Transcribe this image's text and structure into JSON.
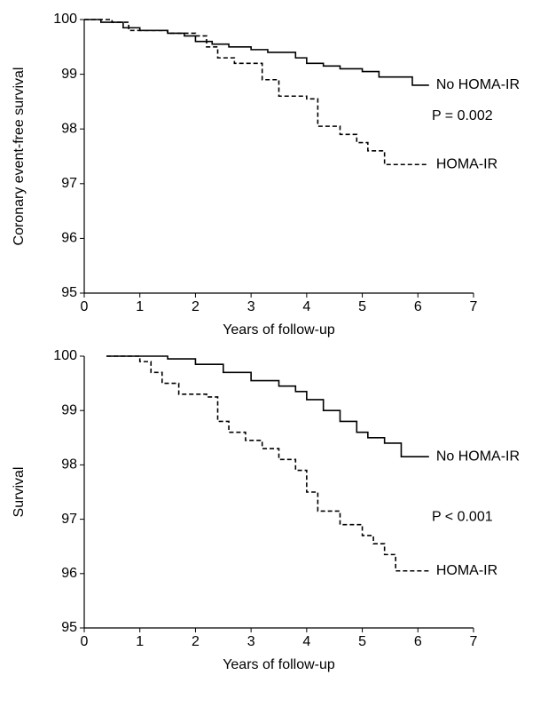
{
  "chart_data": [
    {
      "type": "line",
      "drawstyle": "steps-post",
      "ylabel": "Coronary event-free survival",
      "xlabel": "Years of follow-up",
      "xlim": [
        0,
        7
      ],
      "ylim": [
        95,
        100
      ],
      "xticks": [
        0,
        1,
        2,
        3,
        4,
        5,
        6,
        7
      ],
      "yticks": [
        95,
        96,
        97,
        98,
        99,
        100
      ],
      "annotation": "P = 0.002",
      "series": [
        {
          "name": "No HOMA-IR",
          "color": "#000000",
          "linestyle": "solid",
          "x": [
            0,
            0.3,
            0.7,
            1,
            1.5,
            1.8,
            2,
            2.3,
            2.6,
            3,
            3.3,
            3.8,
            4,
            4.3,
            4.6,
            5,
            5.3,
            5.9,
            6.2
          ],
          "values": [
            100,
            99.95,
            99.85,
            99.8,
            99.75,
            99.7,
            99.6,
            99.55,
            99.5,
            99.45,
            99.4,
            99.3,
            99.2,
            99.15,
            99.1,
            99.05,
            98.95,
            98.8,
            98.8
          ]
        },
        {
          "name": "HOMA-IR",
          "color": "#000000",
          "linestyle": "dashed",
          "x": [
            0,
            0.5,
            0.8,
            1.5,
            2,
            2.2,
            2.4,
            2.7,
            3.2,
            3.5,
            4,
            4.2,
            4.6,
            4.9,
            5.1,
            5.4,
            6.2
          ],
          "values": [
            100,
            99.95,
            99.8,
            99.75,
            99.7,
            99.5,
            99.3,
            99.2,
            98.9,
            98.6,
            98.55,
            98.05,
            97.9,
            97.75,
            97.6,
            97.35,
            97.35
          ]
        }
      ]
    },
    {
      "type": "line",
      "drawstyle": "steps-post",
      "ylabel": "Survival",
      "xlabel": "Years of follow-up",
      "xlim": [
        0,
        7
      ],
      "ylim": [
        95,
        100
      ],
      "xticks": [
        0,
        1,
        2,
        3,
        4,
        5,
        6,
        7
      ],
      "yticks": [
        95,
        96,
        97,
        98,
        99,
        100
      ],
      "annotation": "P < 0.001",
      "series": [
        {
          "name": "No HOMA-IR",
          "color": "#000000",
          "linestyle": "solid",
          "x": [
            0.4,
            1,
            1.5,
            2,
            2.5,
            3,
            3.5,
            3.8,
            4,
            4.3,
            4.6,
            4.9,
            5.1,
            5.4,
            5.7,
            6.2
          ],
          "values": [
            100,
            100,
            99.95,
            99.85,
            99.7,
            99.55,
            99.45,
            99.35,
            99.2,
            99.0,
            98.8,
            98.6,
            98.5,
            98.4,
            98.15,
            98.15
          ]
        },
        {
          "name": "HOMA-IR",
          "color": "#000000",
          "linestyle": "dashed",
          "x": [
            0.4,
            1,
            1.2,
            1.4,
            1.7,
            2.2,
            2.4,
            2.6,
            2.9,
            3.2,
            3.5,
            3.8,
            4,
            4.2,
            4.6,
            5,
            5.2,
            5.4,
            5.6,
            6.2
          ],
          "values": [
            100,
            99.9,
            99.7,
            99.5,
            99.3,
            99.25,
            98.8,
            98.6,
            98.45,
            98.3,
            98.1,
            97.9,
            97.5,
            97.15,
            96.9,
            96.7,
            96.55,
            96.35,
            96.05,
            96.05
          ]
        }
      ]
    }
  ]
}
